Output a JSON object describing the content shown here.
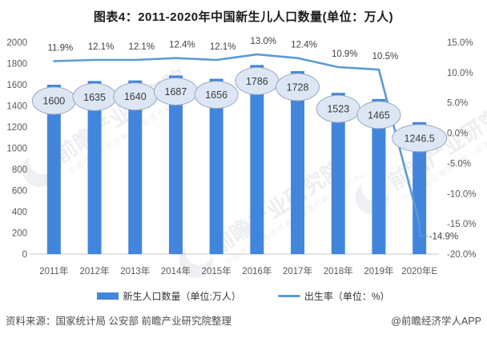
{
  "title": "图表4：2011-2020年中国新生儿人口数量(单位：万人)",
  "chart_data": {
    "type": "combo",
    "categories": [
      "2011年",
      "2012年",
      "2013年",
      "2014年",
      "2015年",
      "2016年",
      "2017年",
      "2018年",
      "2019年",
      "2020年E"
    ],
    "series": [
      {
        "name": "新生人口数量（单位:万人）",
        "type": "bar",
        "axis": "left",
        "color": "#4285DC",
        "values": [
          1600,
          1635,
          1640,
          1687,
          1656,
          1786,
          1728,
          1523,
          1465,
          1246.5
        ],
        "labels": [
          "1600",
          "1635",
          "1640",
          "1687",
          "1656",
          "1786",
          "1728",
          "1523",
          "1465",
          "1246.5"
        ]
      },
      {
        "name": "出生率（单位：%）",
        "type": "line",
        "axis": "right",
        "color": "#5B9BD5",
        "values": [
          11.9,
          12.1,
          12.1,
          12.4,
          12.1,
          13.0,
          12.4,
          10.9,
          10.5,
          -14.9
        ],
        "labels": [
          "11.9%",
          "12.1%",
          "12.1%",
          "12.4%",
          "12.1%",
          "13.0%",
          "12.4%",
          "10.9%",
          "10.5%",
          "-14.9%"
        ]
      }
    ],
    "left_axis": {
      "min": 0,
      "max": 2000,
      "step": 200,
      "ticks": [
        "2000",
        "1800",
        "1600",
        "1400",
        "1200",
        "1000",
        "800",
        "600",
        "400",
        "200",
        "0"
      ]
    },
    "right_axis": {
      "min": -20,
      "max": 15,
      "step": 5,
      "ticks": [
        "15.0%",
        "10.0%",
        "5.0%",
        "0.0%",
        "-5.0%",
        "-10.0%",
        "-15.0%",
        "-20.0%"
      ]
    },
    "grid": false,
    "legend_position": "bottom",
    "bubble_fill": "#dde6f4",
    "bubble_stroke": "#9ca9bd",
    "axis_line_color": "#d0d0d0",
    "tick_text_color": "#595959",
    "label_text_color": "#3a3a3a"
  },
  "watermark": {
    "text": "前瞻产业研究院",
    "subtext": "中国产业咨询领导者（股票代码：839599）"
  },
  "footer": {
    "source": "资料来源：国家统计局 公安部 前瞻产业研究院整理",
    "credit": "@前瞻经济学人APP"
  }
}
